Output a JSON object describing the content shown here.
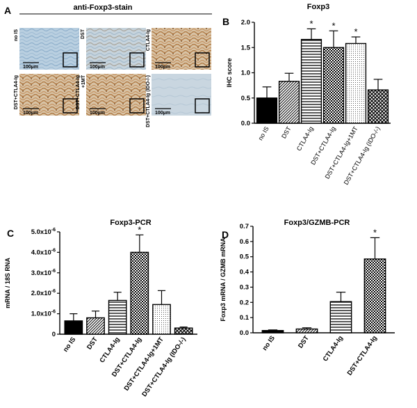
{
  "panel_a": {
    "letter": "A",
    "title": "anti-Foxp3-stain",
    "scale_bar": "100µm",
    "images": [
      {
        "label": "no IS"
      },
      {
        "label": "DST"
      },
      {
        "label": "CTLA4-Ig"
      },
      {
        "label": "DST+CTLA4-Ig"
      },
      {
        "label": "DST+CTLA4-Ig +1MT"
      },
      {
        "label": "DST+CTLA4-Ig (IDO-/-)"
      }
    ]
  },
  "chart_data": [
    {
      "panel": "B",
      "type": "bar",
      "title": "Foxp3",
      "ylabel": "IHC score",
      "ylim": [
        0,
        2.0
      ],
      "yticks": [
        "0.0",
        "0.5",
        "1.0",
        "1.5",
        "2.0"
      ],
      "categories": [
        "no IS",
        "DST",
        "CTLA4-Ig",
        "DST+CTLA4-Ig",
        "DST+CTLA4-Ig+1MT",
        "DST+CTLA4-Ig (IDO-/-)"
      ],
      "values": [
        0.5,
        0.83,
        1.66,
        1.5,
        1.58,
        0.66
      ],
      "errors": [
        0.22,
        0.16,
        0.21,
        0.33,
        0.13,
        0.21
      ],
      "significant": [
        false,
        false,
        true,
        true,
        true,
        false
      ],
      "star": "*"
    },
    {
      "panel": "C",
      "type": "bar",
      "title": "Foxp3-PCR",
      "ylabel": "mRNA / 18S RNA",
      "ylim": [
        0,
        5e-06
      ],
      "yticks": [
        "0",
        "1.0x10-6",
        "2.0x10-6",
        "3.0x10-6",
        "4.0x10-6",
        "5.0x10-6"
      ],
      "categories": [
        "no IS",
        "DST",
        "CTLA4-Ig",
        "DST+CTLA4-Ig",
        "DST+CTLA4-Ig+1MT",
        "DST+CTLA4-Ig (IDO-/-)"
      ],
      "values": [
        6.5e-07,
        8e-07,
        1.65e-06,
        4e-06,
        1.45e-06,
        3e-07
      ],
      "errors": [
        3.5e-07,
        3.3e-07,
        4e-07,
        8.5e-07,
        6.8e-07,
        5e-08
      ],
      "significant": [
        false,
        false,
        false,
        true,
        false,
        false
      ],
      "star": "*"
    },
    {
      "panel": "D",
      "type": "bar",
      "title": "Foxp3/GZMB-PCR",
      "ylabel": "Foxp3 mRNA / GZMB mRNA",
      "ylim": [
        0,
        0.7
      ],
      "yticks": [
        "0.0",
        "0.1",
        "0.2",
        "0.3",
        "0.4",
        "0.5",
        "0.6",
        "0.7"
      ],
      "categories": [
        "no IS",
        "DST",
        "CTLA4-Ig",
        "DST+CTLA4-Ig"
      ],
      "values": [
        0.015,
        0.025,
        0.205,
        0.485
      ],
      "errors": [
        0.004,
        0.008,
        0.062,
        0.14
      ],
      "significant": [
        false,
        false,
        false,
        true
      ],
      "star": "*"
    }
  ]
}
